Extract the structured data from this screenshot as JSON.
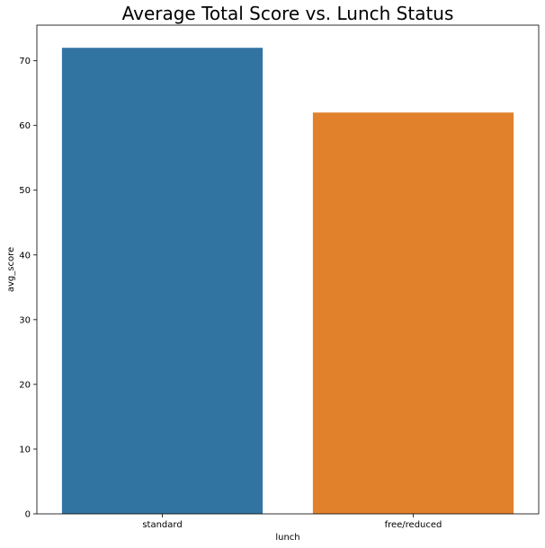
{
  "chart_data": {
    "type": "bar",
    "title": "Average Total Score vs. Lunch Status",
    "xlabel": "lunch",
    "ylabel": "avg_score",
    "categories": [
      "standard",
      "free/reduced"
    ],
    "values": [
      72.0,
      62.0
    ],
    "colors": [
      "#3274a1",
      "#e1812c"
    ],
    "ylim": [
      0,
      75.5
    ],
    "yticks": [
      0,
      10,
      20,
      30,
      40,
      50,
      60,
      70
    ],
    "grid": false,
    "legend": "none"
  }
}
